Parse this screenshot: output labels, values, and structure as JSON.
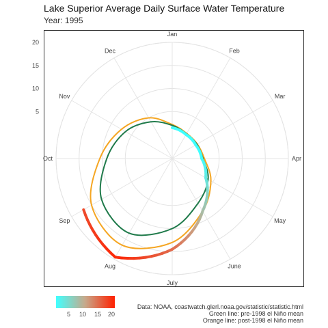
{
  "title": "Lake Superior Average Daily Surface Water Temperature",
  "subtitle": "Year: 1995",
  "caption": [
    "Data: NOAA, coastwatch.glerl.noaa.gov/statistic/statistic.html",
    "Green line: pre-1998 el Niño mean",
    "Orange line: post-1998 el Niño mean"
  ],
  "legend": {
    "ticks": [
      "5",
      "10",
      "15",
      "20"
    ],
    "colors": [
      "#40ffff",
      "#c8a88a",
      "#ff2000"
    ]
  },
  "colors": {
    "pre_mean": "#1f7a4a",
    "post_mean": "#f5a623"
  },
  "chart_data": {
    "type": "line",
    "coord": "polar",
    "radial_axis": {
      "ticks": [
        5,
        10,
        15,
        20
      ],
      "label": ""
    },
    "months": [
      "Jan",
      "Feb",
      "Mar",
      "Apr",
      "May",
      "June",
      "July",
      "Aug",
      "Sep",
      "Oct",
      "Nov",
      "Dec"
    ],
    "grid": true,
    "series": [
      {
        "name": "1995",
        "color_scale": "temperature",
        "x": [
          "Jan",
          "Feb",
          "Mar",
          "Apr",
          "May",
          "June",
          "July",
          "Aug",
          "Sep"
        ],
        "y": [
          1.5,
          0.8,
          0.7,
          1.2,
          3.2,
          8.0,
          14.5,
          19.5,
          17.0
        ]
      },
      {
        "name": "Green line: pre-1998 el Niño mean",
        "x": [
          "Jan",
          "Feb",
          "Mar",
          "Apr",
          "May",
          "June",
          "July",
          "Aug",
          "Sep",
          "Oct",
          "Nov",
          "Dec"
        ],
        "y": [
          2.0,
          1.0,
          1.0,
          1.5,
          3.8,
          6.0,
          10.0,
          13.5,
          12.5,
          9.0,
          6.5,
          4.0
        ]
      },
      {
        "name": "Orange line: post-1998 el Niño mean",
        "x": [
          "Jan",
          "Feb",
          "Mar",
          "Apr",
          "May",
          "June",
          "July",
          "Aug",
          "Sep",
          "Oct",
          "Nov",
          "Dec"
        ],
        "y": [
          2.2,
          1.1,
          1.1,
          1.8,
          4.5,
          8.0,
          13.0,
          16.5,
          15.0,
          10.5,
          7.5,
          5.0
        ]
      }
    ]
  }
}
